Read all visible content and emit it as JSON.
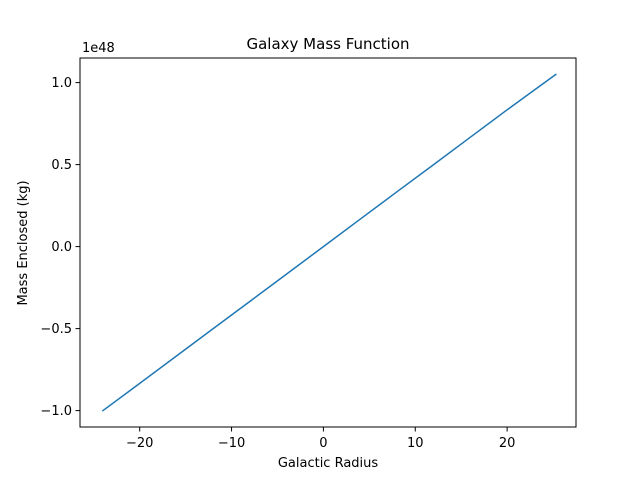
{
  "chart_data": {
    "type": "line",
    "title": "Galaxy Mass Function",
    "xlabel": "Galactic Radius",
    "ylabel": "Mass Enclosed (kg)",
    "y_offset_label": "1e48",
    "xlim": [
      -26.5,
      27.5
    ],
    "ylim": [
      -1.1,
      1.15
    ],
    "xticks": [
      -20,
      -10,
      0,
      10,
      20
    ],
    "xtick_labels": [
      "−20",
      "−10",
      "0",
      "10",
      "20"
    ],
    "yticks": [
      -1.0,
      -0.5,
      0.0,
      0.5,
      1.0
    ],
    "ytick_labels": [
      "−1.0",
      "−0.5",
      "0.0",
      "0.5",
      "1.0"
    ],
    "grid": false,
    "series": [
      {
        "color": "#1f77b4",
        "x": [
          -24.0,
          -20.0,
          -16.0,
          -12.0,
          -8.0,
          -4.0,
          0.0,
          4.0,
          8.0,
          12.0,
          16.0,
          20.0,
          25.3
        ],
        "y": [
          -1.0,
          -0.834,
          -0.667,
          -0.5,
          -0.334,
          -0.167,
          0.0,
          0.167,
          0.334,
          0.5,
          0.667,
          0.834,
          1.05
        ]
      }
    ]
  }
}
